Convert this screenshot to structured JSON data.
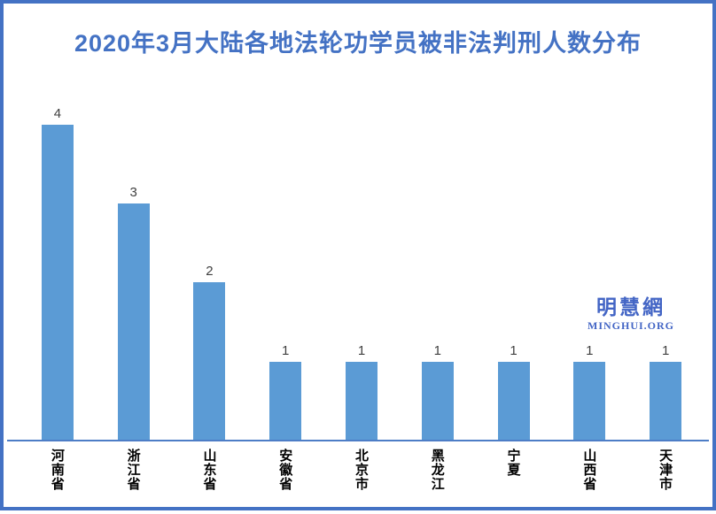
{
  "page": {
    "title": "2020年3月大陆各地法轮功学员被非法判刑人数分布",
    "title_color": "#4472C4",
    "border_color": "#4472C4",
    "background_color": "#FFFFFF"
  },
  "watermark": {
    "cn": "明慧網",
    "en": "MINGHUI.ORG",
    "color": "#4365C5"
  },
  "chart_data": {
    "type": "bar",
    "title": "2020年3月大陆各地法轮功学员被非法判刑人数分布",
    "categories": [
      "河南省",
      "浙江省",
      "山东省",
      "安徽省",
      "北京市",
      "黑龙江",
      "宁夏",
      "山西省",
      "天津市"
    ],
    "values": [
      4,
      3,
      2,
      1,
      1,
      1,
      1,
      1,
      1
    ],
    "xlabel": "",
    "ylabel": "",
    "ylim": [
      0,
      4
    ],
    "grid": false,
    "legend": false,
    "data_labels": true,
    "category_label_orientation": "vertical",
    "bar_color": "#5B9BD5",
    "axis_line_color": "#4D7DC6",
    "value_label_color": "#3F3F3F",
    "category_label_color": "#000000"
  }
}
